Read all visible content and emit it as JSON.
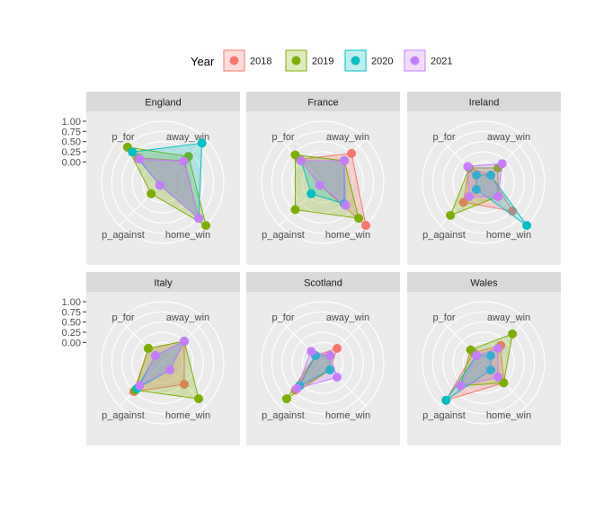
{
  "chart_data": {
    "type": "radar",
    "legend": {
      "title": "Year",
      "position": "top",
      "entries": [
        {
          "name": "2018",
          "color": "#F8766D"
        },
        {
          "name": "2019",
          "color": "#7CAE00"
        },
        {
          "name": "2020",
          "color": "#00BFC4"
        },
        {
          "name": "2021",
          "color": "#C77CFF"
        }
      ]
    },
    "axes": [
      "away_win",
      "home_win",
      "p_against",
      "p_for"
    ],
    "rlim": [
      -0.5,
      1
    ],
    "rticks": [
      "1.00",
      "0.75",
      "0.50",
      "0.25",
      "0.00"
    ],
    "grid": true,
    "panels": [
      {
        "title": "England",
        "series": [
          {
            "name": "2018",
            "values": [
              0.25,
              0.75,
              -0.4,
              0.35
            ]
          },
          {
            "name": "2019",
            "values": [
              0.4,
              1.0,
              -0.1,
              0.72
            ]
          },
          {
            "name": "2020",
            "values": [
              0.86,
              0.75,
              -0.4,
              0.55
            ]
          },
          {
            "name": "2021",
            "values": [
              0.23,
              0.75,
              -0.4,
              0.3
            ]
          }
        ]
      },
      {
        "title": "France",
        "series": [
          {
            "name": "2018",
            "values": [
              0.5,
              1.0,
              -0.4,
              0.3
            ]
          },
          {
            "name": "2019",
            "values": [
              0.25,
              0.75,
              0.45,
              0.45
            ]
          },
          {
            "name": "2020",
            "values": [
              0.25,
              0.25,
              -0.1,
              0.25
            ]
          },
          {
            "name": "2021",
            "values": [
              0.25,
              0.3,
              -0.4,
              0.25
            ]
          }
        ]
      },
      {
        "title": "Ireland",
        "series": [
          {
            "name": "2018",
            "values": [
              -0.25,
              0.5,
              0.2,
              0.0
            ]
          },
          {
            "name": "2019",
            "values": [
              0.0,
              0.0,
              0.65,
              0.0
            ]
          },
          {
            "name": "2020",
            "values": [
              -0.25,
              1.0,
              -0.25,
              -0.25
            ]
          },
          {
            "name": "2021",
            "values": [
              0.15,
              0.0,
              0.0,
              0.05
            ]
          }
        ]
      },
      {
        "title": "Italy",
        "series": [
          {
            "name": "2018",
            "values": [
              0.25,
              0.25,
              0.5,
              0.0
            ]
          },
          {
            "name": "2019",
            "values": [
              0.25,
              0.75,
              0.45,
              0.0
            ]
          },
          {
            "name": "2020",
            "values": [
              0.25,
              -0.25,
              0.4,
              -0.25
            ]
          },
          {
            "name": "2021",
            "values": [
              0.25,
              -0.25,
              0.3,
              -0.25
            ]
          }
        ]
      },
      {
        "title": "Scotland",
        "series": [
          {
            "name": "2018",
            "values": [
              0.0,
              -0.25,
              0.45,
              -0.25
            ]
          },
          {
            "name": "2019",
            "values": [
              -0.25,
              -0.25,
              0.75,
              -0.25
            ]
          },
          {
            "name": "2020",
            "values": [
              -0.25,
              -0.25,
              0.3,
              -0.25
            ]
          },
          {
            "name": "2021",
            "values": [
              -0.25,
              0.0,
              0.4,
              -0.1
            ]
          }
        ]
      },
      {
        "title": "Wales",
        "series": [
          {
            "name": "2018",
            "values": [
              0.1,
              0.2,
              0.8,
              -0.15
            ]
          },
          {
            "name": "2019",
            "values": [
              0.5,
              0.2,
              0.3,
              -0.05
            ]
          },
          {
            "name": "2020",
            "values": [
              -0.25,
              -0.25,
              0.8,
              -0.25
            ]
          },
          {
            "name": "2021",
            "values": [
              0.0,
              0.0,
              0.3,
              -0.25
            ]
          }
        ]
      }
    ]
  }
}
